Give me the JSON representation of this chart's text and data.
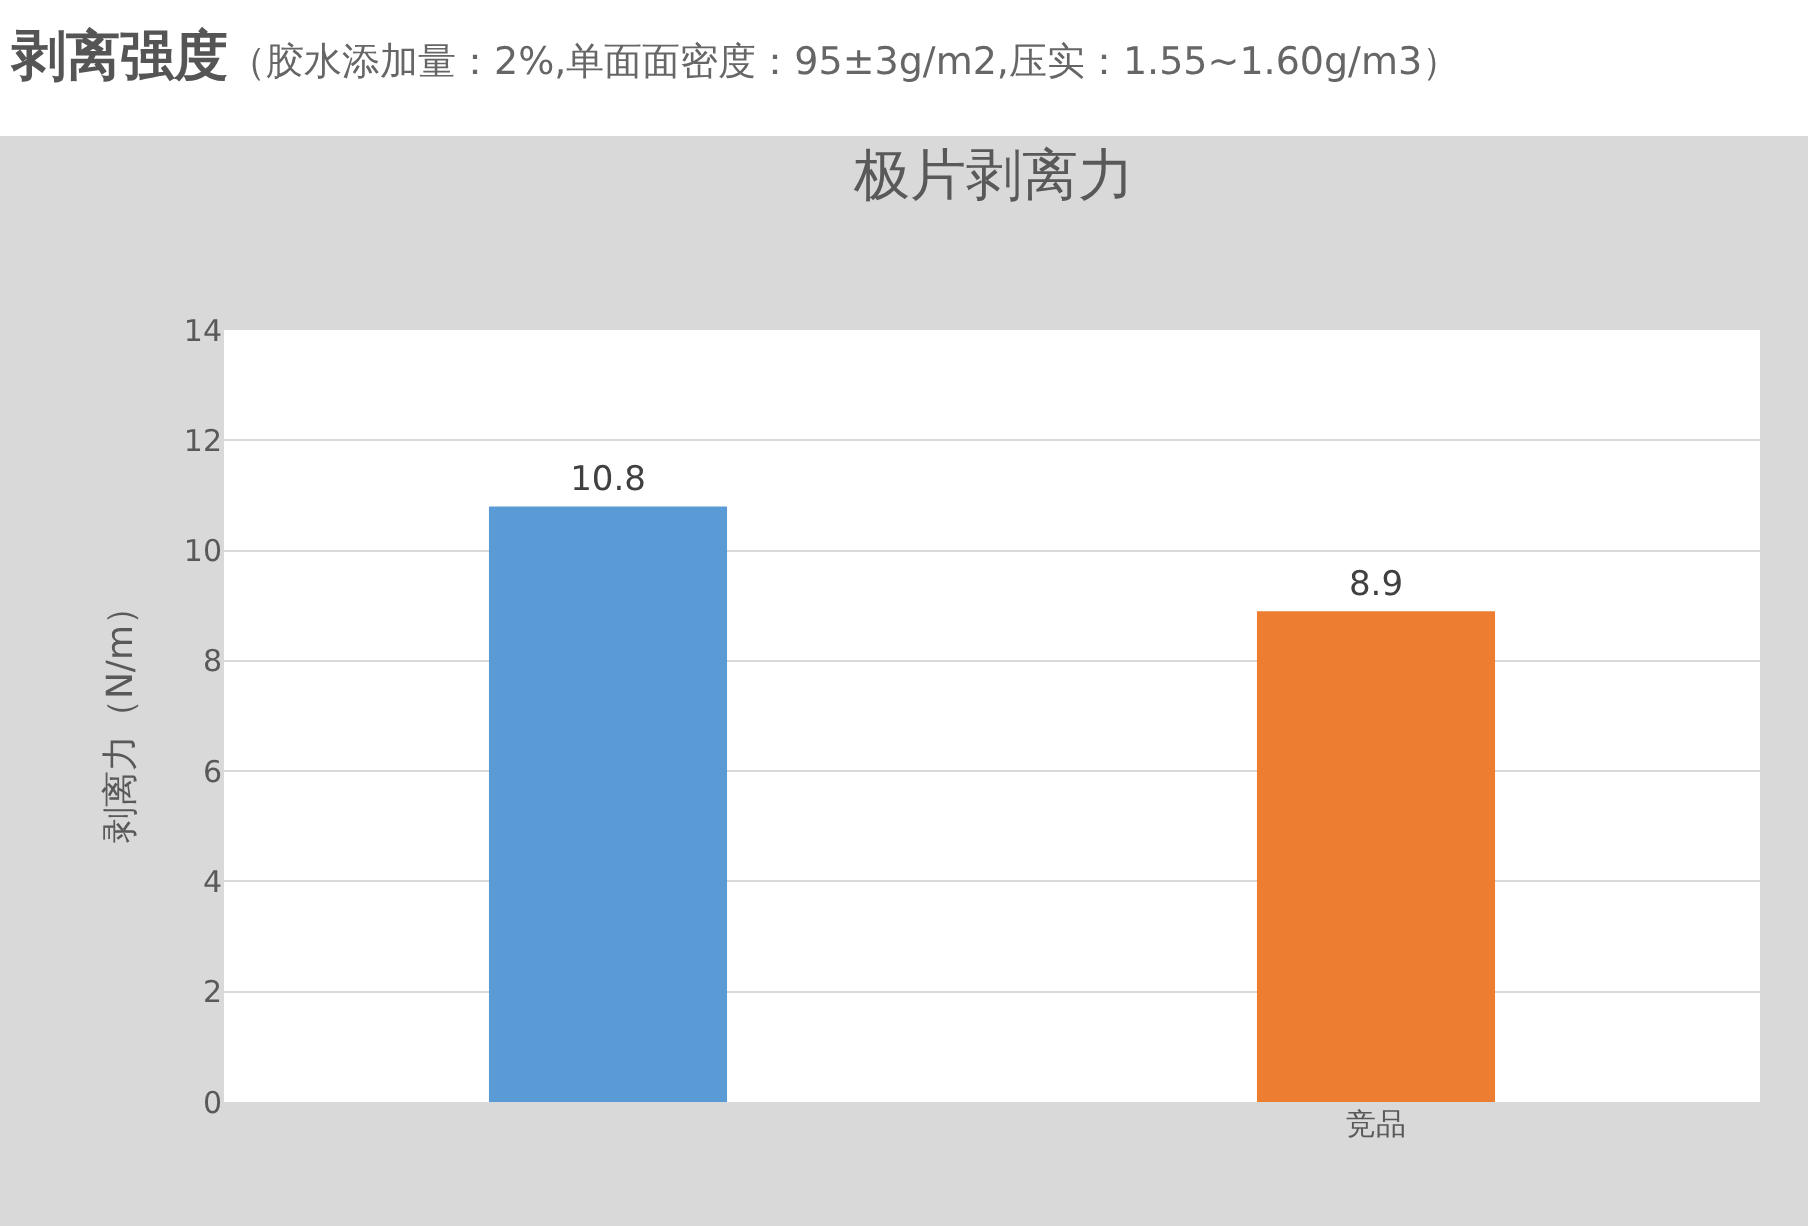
{
  "chart_data": {
    "type": "bar",
    "title": "剥离强度",
    "subtitle": "（胶水添加量：2%,单面面密度：95±3g/m2,压实：1.55~1.60g/m3）",
    "annotations": [
      "极片剥离力"
    ],
    "ylabel": "剥离力（N/m）",
    "categories": [
      null,
      "竞品"
    ],
    "values": [
      10.8,
      8.9
    ],
    "colors": [
      "#5b9bd5",
      "#ed7d31"
    ],
    "ylim": [
      0,
      14
    ],
    "yticks": [
      0,
      2,
      4,
      6,
      8,
      10,
      12,
      14
    ],
    "grid": "y",
    "data_labels": true,
    "legend": false
  }
}
